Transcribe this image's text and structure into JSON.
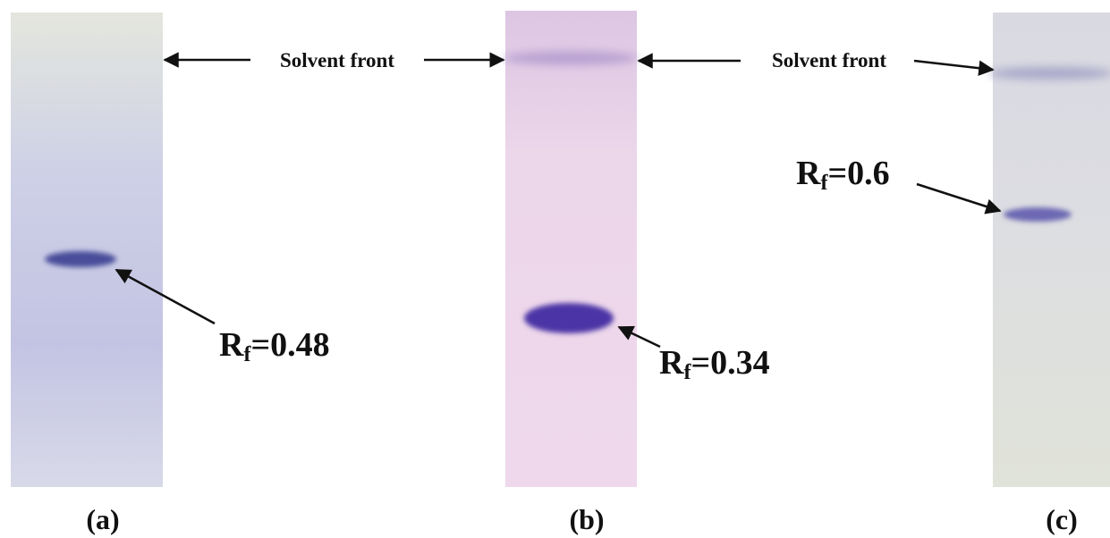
{
  "panels": [
    {
      "label": "(a)",
      "annotation": "Solvent front",
      "rf": {
        "main": "R",
        "sub": "f",
        "rest": "=0.48"
      }
    },
    {
      "label": "(b)",
      "rf": {
        "main": "R",
        "sub": "f",
        "rest": "=0.34"
      }
    },
    {
      "label": "(c)",
      "annotation": "Solvent front",
      "rf": {
        "main": "R",
        "sub": "f",
        "rest": "=0.6"
      }
    }
  ]
}
